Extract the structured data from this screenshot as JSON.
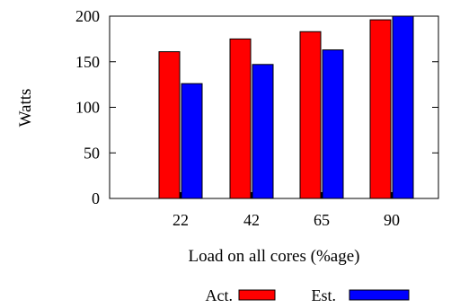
{
  "chart_data": {
    "type": "bar",
    "title": "",
    "xlabel": "Load on all cores (%age)",
    "ylabel": "Watts",
    "categories": [
      "22",
      "42",
      "65",
      "90"
    ],
    "ylim": [
      0,
      200
    ],
    "yticks": [
      "0",
      "50",
      "100",
      "150",
      "200"
    ],
    "grid": false,
    "legend_position": "bottom",
    "series": [
      {
        "name": "Act.",
        "color": "#ff0000",
        "values": [
          161,
          175,
          183,
          196
        ]
      },
      {
        "name": "Est.",
        "color": "#0000ff",
        "values": [
          126,
          147,
          163,
          200
        ]
      }
    ]
  }
}
